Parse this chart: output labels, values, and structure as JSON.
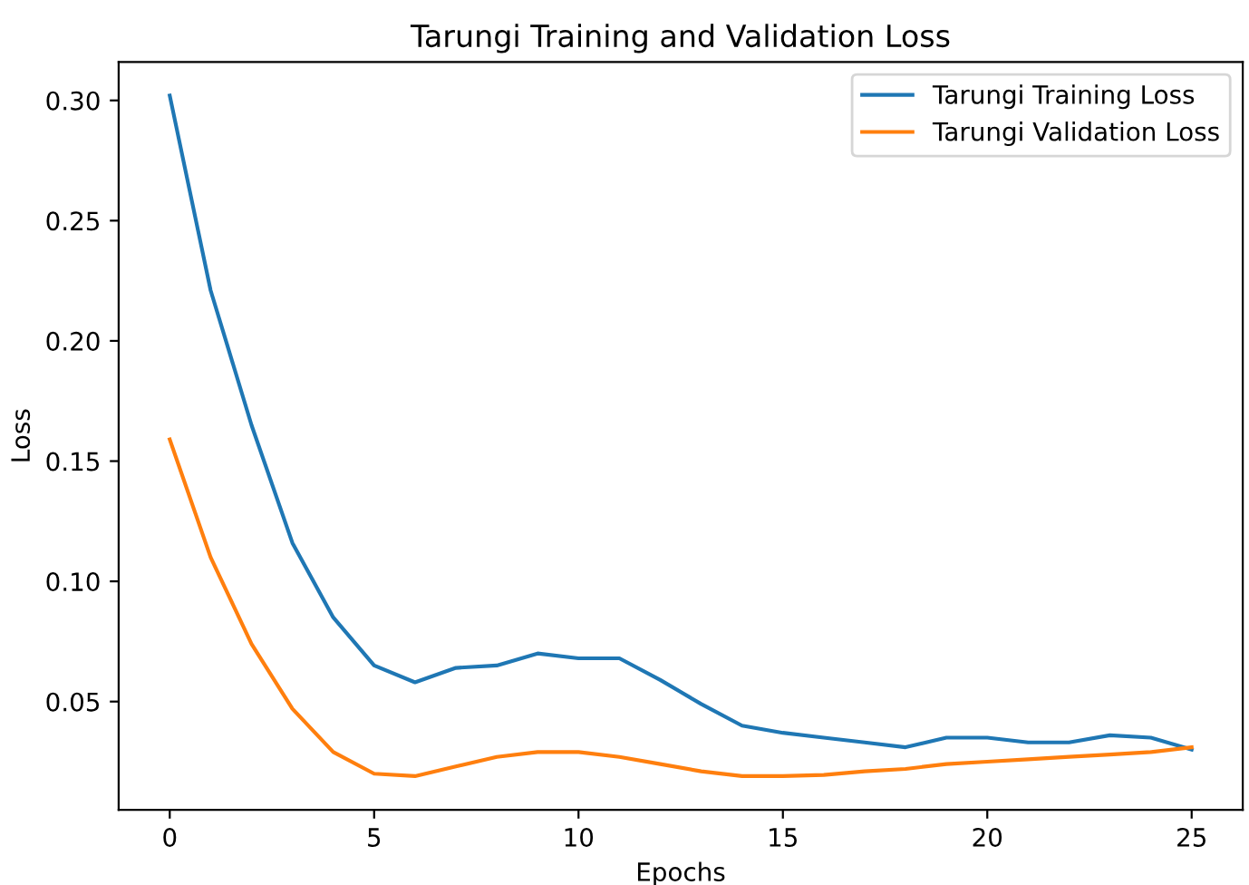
{
  "chart_data": {
    "type": "line",
    "title": "Tarungi Training and Validation Loss",
    "xlabel": "Epochs",
    "ylabel": "Loss",
    "x": [
      0,
      1,
      2,
      3,
      4,
      5,
      6,
      7,
      8,
      9,
      10,
      11,
      12,
      13,
      14,
      15,
      16,
      17,
      18,
      19,
      20,
      21,
      22,
      23,
      24,
      25
    ],
    "series": [
      {
        "name": "Tarungi Training Loss",
        "color": "#1f77b4",
        "values": [
          0.302,
          0.221,
          0.165,
          0.116,
          0.085,
          0.065,
          0.058,
          0.064,
          0.065,
          0.07,
          0.068,
          0.068,
          0.059,
          0.049,
          0.04,
          0.037,
          0.035,
          0.033,
          0.031,
          0.035,
          0.035,
          0.033,
          0.033,
          0.036,
          0.035,
          0.03
        ]
      },
      {
        "name": "Tarungi Validation Loss",
        "color": "#ff7f0e",
        "values": [
          0.159,
          0.11,
          0.074,
          0.047,
          0.029,
          0.02,
          0.019,
          0.023,
          0.027,
          0.029,
          0.029,
          0.027,
          0.024,
          0.021,
          0.019,
          0.019,
          0.0195,
          0.021,
          0.022,
          0.024,
          0.025,
          0.026,
          0.027,
          0.028,
          0.029,
          0.031
        ]
      }
    ],
    "xlim": [
      -1.25,
      26.25
    ],
    "xticks": [
      0,
      5,
      10,
      15,
      20,
      25
    ],
    "ylim": [
      0.005,
      0.316
    ],
    "yticks": [
      {
        "value": 0.05,
        "label": "0.05"
      },
      {
        "value": 0.1,
        "label": "0.10"
      },
      {
        "value": 0.15,
        "label": "0.15"
      },
      {
        "value": 0.2,
        "label": "0.20"
      },
      {
        "value": 0.25,
        "label": "0.25"
      },
      {
        "value": 0.3,
        "label": "0.30"
      }
    ],
    "legend": "top right",
    "grid": false,
    "marker": "none",
    "line_style": "solid"
  }
}
